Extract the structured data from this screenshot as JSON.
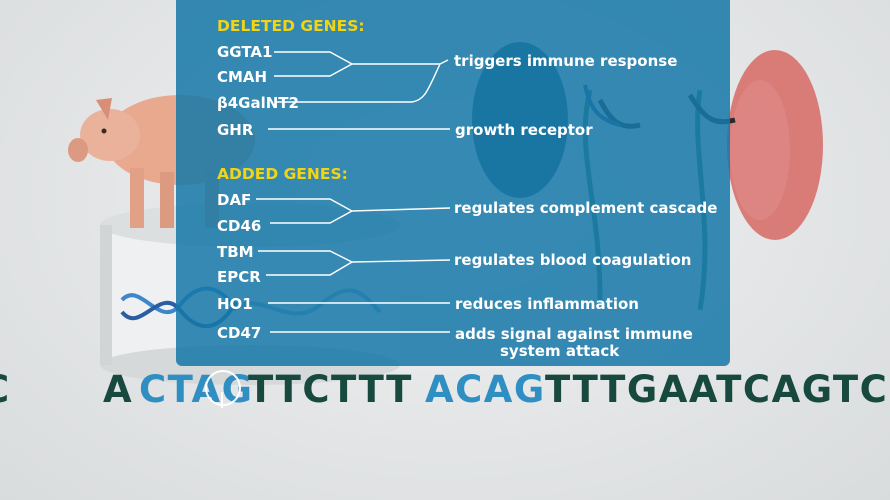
{
  "deleted": {
    "header": "DELETED GENES:",
    "genes": [
      "GGTA1",
      "CMAH",
      "β4GalNT2",
      "GHR"
    ],
    "functions": [
      "triggers immune response",
      "growth receptor"
    ]
  },
  "added": {
    "header": "ADDED GENES:",
    "genes": [
      "DAF",
      "CD46",
      "TBM",
      "EPCR",
      "HO1",
      "CD47"
    ],
    "functions": [
      "regulates complement cascade",
      "regulates blood coagulation",
      "reduces inflammation",
      "adds signal against immune",
      "system attack"
    ]
  },
  "sequence": {
    "segments": [
      "C",
      "A",
      "CTAG",
      "TTCTTT",
      "ACAG",
      "TTTGAATCAGTC"
    ]
  },
  "colors": {
    "panel": "#1678a8",
    "header": "#f2d416",
    "dna_dark": "#17493e",
    "dna_blue": "#2f8fc2"
  },
  "icons": [
    "pig-figure",
    "kidney-figure",
    "dna-helix-icon",
    "cursor-ring-icon"
  ]
}
